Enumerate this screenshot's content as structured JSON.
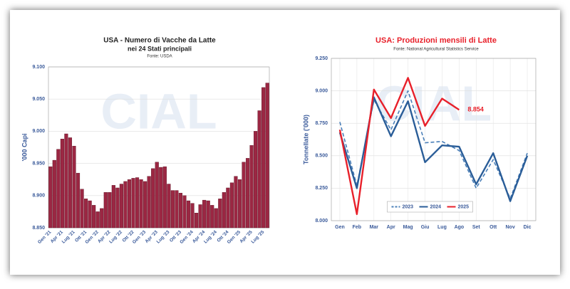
{
  "chart_data": [
    {
      "type": "bar",
      "title": "USA - Numero di Vacche da Latte",
      "subtitle": "nei 24 Stati principali",
      "source": "Fonte: USDA",
      "watermark": "CIAL",
      "ylabel": "'000 Capi",
      "color": "#9b2743",
      "grid": true,
      "categories": [
        "Gen '21",
        null,
        null,
        "Apr '21",
        null,
        null,
        "Lug '21",
        null,
        null,
        "Ott '21",
        null,
        null,
        "Gen '22",
        null,
        null,
        "Apr '22",
        null,
        null,
        "Lug '22",
        null,
        null,
        "Ott '22",
        null,
        null,
        "Gen '23",
        null,
        null,
        "Apr '23",
        null,
        null,
        "Lug '23",
        null,
        null,
        "Ott '23",
        null,
        null,
        "Gen '24",
        null,
        null,
        "Apr '24",
        null,
        null,
        "Lug '24",
        null,
        null,
        "Ott '24",
        null,
        null,
        "Gen '25",
        null,
        null,
        "Apr '25",
        null,
        null,
        "Lug '25",
        null
      ],
      "values": [
        8945,
        8955,
        8972,
        8988,
        8996,
        8990,
        8977,
        8935,
        8910,
        8895,
        8892,
        8885,
        8875,
        8880,
        8905,
        8905,
        8916,
        8912,
        8918,
        8922,
        8925,
        8927,
        8928,
        8925,
        8922,
        8930,
        8942,
        8952,
        8944,
        8945,
        8918,
        8908,
        8908,
        8904,
        8900,
        8892,
        8888,
        8873,
        8886,
        8893,
        8892,
        8885,
        8880,
        8895,
        8905,
        8912,
        8920,
        8930,
        8925,
        8952,
        8958,
        8978,
        9000,
        9032,
        9068,
        9075
      ],
      "ylim": [
        8850,
        9100
      ],
      "yticks": [
        {
          "value": 8850,
          "label": "8.850"
        },
        {
          "value": 8900,
          "label": "8.900"
        },
        {
          "value": 8950,
          "label": "8.950"
        },
        {
          "value": 9000,
          "label": "9.000"
        },
        {
          "value": 9050,
          "label": "9.050"
        },
        {
          "value": 9100,
          "label": "9.100"
        }
      ]
    },
    {
      "type": "line",
      "title": "USA: Produzioni mensili di Latte",
      "source": "Fonte: National Agricultural Statistics Service",
      "watermark": "CIAL",
      "ylabel": "Tonnellate ('000)",
      "grid": true,
      "legend": "lower center",
      "categories": [
        "Gen",
        "Feb",
        "Mar",
        "Apr",
        "Mag",
        "Giu",
        "Lug",
        "Ago",
        "Set",
        "Ott",
        "Nov",
        "Dic"
      ],
      "series": [
        {
          "name": "2023",
          "color": "#4a7fb8",
          "style": "dashed",
          "values": [
            8760,
            8270,
            8930,
            8700,
            9000,
            8600,
            8610,
            8540,
            8250,
            8470,
            8170,
            8520
          ]
        },
        {
          "name": "2024",
          "color": "#2a5d98",
          "style": "solid",
          "values": [
            8680,
            8250,
            8950,
            8650,
            8920,
            8450,
            8580,
            8570,
            8280,
            8520,
            8150,
            8500
          ]
        },
        {
          "name": "2025",
          "color": "#e8202a",
          "style": "solid",
          "values": [
            8700,
            8050,
            9010,
            8790,
            9100,
            8730,
            8940,
            8854,
            null,
            null,
            null,
            null
          ],
          "value_labels": [
            null,
            null,
            null,
            null,
            null,
            null,
            null,
            "8.854",
            null,
            null,
            null,
            null
          ]
        }
      ],
      "ylim": [
        8000,
        9250
      ],
      "yticks": [
        {
          "value": 8000,
          "label": "8.000"
        },
        {
          "value": 8250,
          "label": "8.250"
        },
        {
          "value": 8500,
          "label": "8.500"
        },
        {
          "value": 8750,
          "label": "8.750"
        },
        {
          "value": 9000,
          "label": "9.000"
        },
        {
          "value": 9250,
          "label": "9.250"
        }
      ]
    }
  ]
}
